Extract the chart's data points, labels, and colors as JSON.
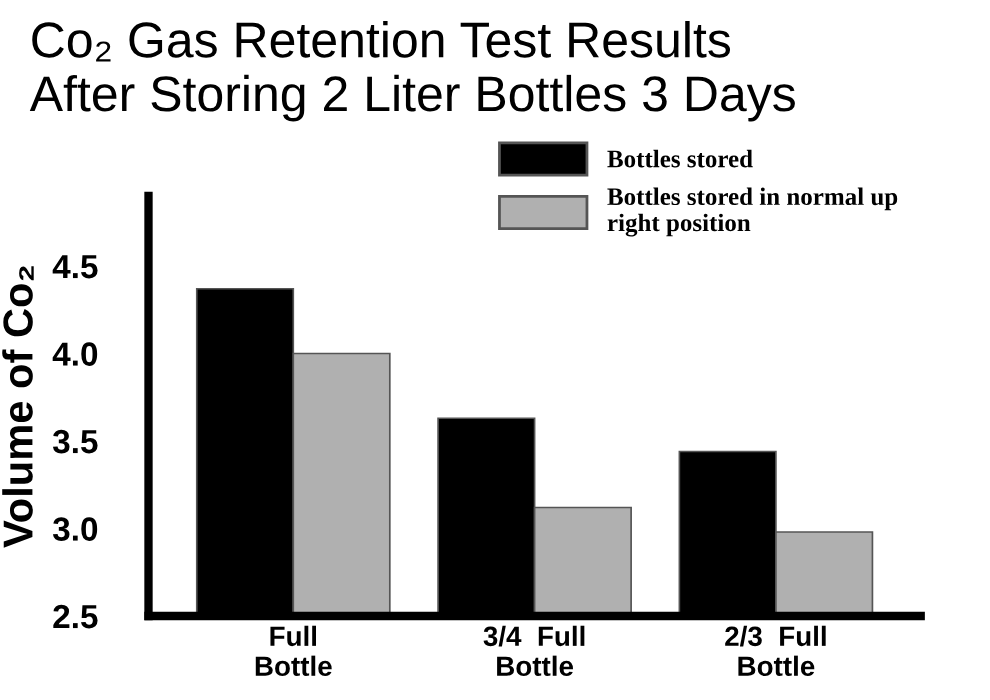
{
  "chart_data": {
    "type": "bar",
    "title": "Co₂ Gas Retention Test Results\nAfter Storing 2 Liter Bottles 3 Days",
    "ylabel": "Volume of Co₂",
    "categories": [
      "Full\nBottle",
      "3/4  Full\nBottle",
      "2/3  Full\nBottle"
    ],
    "series": [
      {
        "name": "Bottles stored",
        "color": "#000000",
        "values": [
          4.37,
          3.63,
          3.44
        ]
      },
      {
        "name": "Bottles stored in normal up\nright position",
        "color": "#b0b0b0",
        "values": [
          4.0,
          3.12,
          2.98
        ]
      }
    ],
    "ylim": [
      2.5,
      4.9
    ],
    "yticks": [
      {
        "value": 2.5,
        "label": "2.5"
      },
      {
        "value": 3.0,
        "label": "3.0"
      },
      {
        "value": 3.5,
        "label": "3.5"
      },
      {
        "value": 4.0,
        "label": "4.0"
      },
      {
        "value": 4.5,
        "label": "4.5"
      }
    ],
    "grid": false,
    "legend": "top right"
  }
}
